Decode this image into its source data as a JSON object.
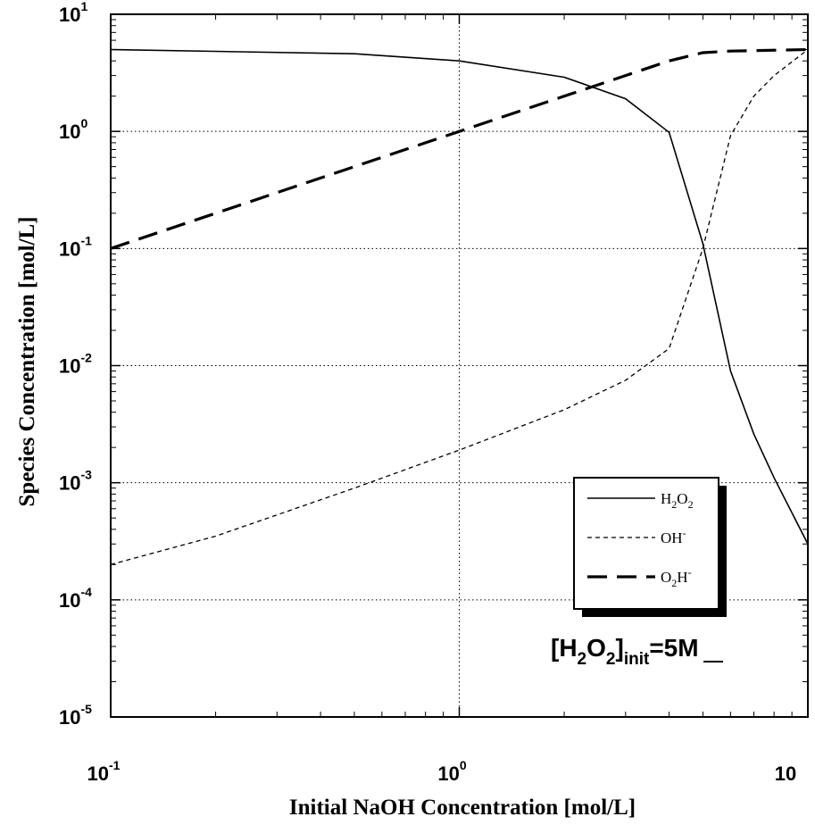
{
  "chart_data": {
    "type": "line",
    "xscale": "log",
    "yscale": "log",
    "xlim": [
      0.1,
      10
    ],
    "ylim": [
      1e-05,
      10
    ],
    "grid": true,
    "legend_position": "lower-right",
    "xlabel": "Initial NaOH Concentration [mol/L]",
    "ylabel": "Species Concentration [mol/L]",
    "x_ticks": [
      {
        "value": 0.1,
        "base": "10",
        "exp": "-1"
      },
      {
        "value": 1,
        "base": "10",
        "exp": "0"
      },
      {
        "value": 10,
        "base": "10",
        "exp": ""
      }
    ],
    "y_ticks": [
      {
        "value": 10,
        "base": "10",
        "exp": "1"
      },
      {
        "value": 1,
        "base": "10",
        "exp": "0"
      },
      {
        "value": 0.1,
        "base": "10",
        "exp": "-1"
      },
      {
        "value": 0.01,
        "base": "10",
        "exp": "-2"
      },
      {
        "value": 0.001,
        "base": "10",
        "exp": "-3"
      },
      {
        "value": 0.0001,
        "base": "10",
        "exp": "-4"
      },
      {
        "value": 1e-05,
        "base": "10",
        "exp": "-5"
      }
    ],
    "series": [
      {
        "style": "solid",
        "legend": {
          "a": "H",
          "a_sub": "2",
          "b": "O",
          "b_sub": "2",
          "sup": ""
        },
        "points": [
          [
            0.1,
            5.0
          ],
          [
            0.5,
            4.6
          ],
          [
            1.0,
            4.0
          ],
          [
            2.0,
            2.9
          ],
          [
            3.0,
            1.9
          ],
          [
            4.0,
            0.98
          ],
          [
            5.0,
            0.11
          ],
          [
            6.0,
            0.009
          ],
          [
            7.0,
            0.0026
          ],
          [
            8.0,
            0.0011
          ],
          [
            10.0,
            0.0003
          ]
        ]
      },
      {
        "style": "short-dash",
        "legend": {
          "a": "OH",
          "a_sub": "",
          "b": "",
          "b_sub": "",
          "sup": "-"
        },
        "points": [
          [
            0.1,
            0.0002
          ],
          [
            0.2,
            0.00035
          ],
          [
            0.5,
            0.0009
          ],
          [
            1.0,
            0.0019
          ],
          [
            2.0,
            0.0042
          ],
          [
            3.0,
            0.0075
          ],
          [
            4.0,
            0.014
          ],
          [
            5.0,
            0.1
          ],
          [
            6.0,
            0.92
          ],
          [
            7.0,
            2.0
          ],
          [
            8.0,
            3.0
          ],
          [
            10.0,
            5.0
          ]
        ]
      },
      {
        "style": "long-dash",
        "legend": {
          "a": "O",
          "a_sub": "2",
          "b": "H",
          "b_sub": "",
          "sup": "-"
        },
        "points": [
          [
            0.1,
            0.1
          ],
          [
            0.5,
            0.5
          ],
          [
            1.0,
            1.0
          ],
          [
            2.0,
            2.0
          ],
          [
            3.0,
            3.0
          ],
          [
            4.0,
            4.0
          ],
          [
            5.0,
            4.7
          ],
          [
            6.0,
            4.85
          ],
          [
            10.0,
            5.0
          ]
        ]
      }
    ],
    "annotation": {
      "text1": "[H",
      "sub1": "2",
      "text2": "O",
      "sub2": "2",
      "text3": "]",
      "sub3": "init",
      "text4": "=5M"
    }
  }
}
